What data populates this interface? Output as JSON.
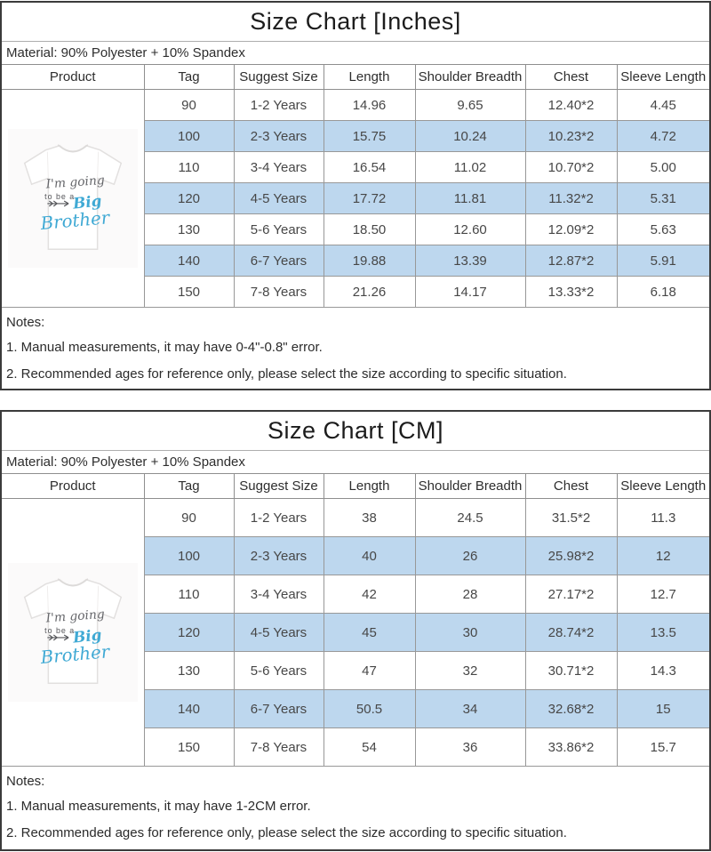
{
  "colors": {
    "row_highlight": "#bdd7ee",
    "outer_border": "#3b3b3b",
    "grid_border": "#989898",
    "shirt_blue": "#3fa9d4",
    "shirt_gray": "#65666a"
  },
  "shirt": {
    "line1": "I'm going",
    "line2": "to be a",
    "line3": "Big",
    "line4": "Brother"
  },
  "charts": [
    {
      "title": "Size Chart [Inches]",
      "material": "Material: 90% Polyester + 10% Spandex",
      "columns": [
        "Product",
        "Tag",
        "Suggest Size",
        "Length",
        "Shoulder Breadth",
        "Chest",
        "Sleeve Length"
      ],
      "rows": [
        {
          "tag": "90",
          "suggest": "1-2 Years",
          "length": "14.96",
          "shoulder": "9.65",
          "chest": "12.40*2",
          "sleeve": "4.45",
          "highlight": false
        },
        {
          "tag": "100",
          "suggest": "2-3 Years",
          "length": "15.75",
          "shoulder": "10.24",
          "chest": "10.23*2",
          "sleeve": "4.72",
          "highlight": true
        },
        {
          "tag": "110",
          "suggest": "3-4 Years",
          "length": "16.54",
          "shoulder": "11.02",
          "chest": "10.70*2",
          "sleeve": "5.00",
          "highlight": false
        },
        {
          "tag": "120",
          "suggest": "4-5 Years",
          "length": "17.72",
          "shoulder": "11.81",
          "chest": "11.32*2",
          "sleeve": "5.31",
          "highlight": true
        },
        {
          "tag": "130",
          "suggest": "5-6 Years",
          "length": "18.50",
          "shoulder": "12.60",
          "chest": "12.09*2",
          "sleeve": "5.63",
          "highlight": false
        },
        {
          "tag": "140",
          "suggest": "6-7 Years",
          "length": "19.88",
          "shoulder": "13.39",
          "chest": "12.87*2",
          "sleeve": "5.91",
          "highlight": true
        },
        {
          "tag": "150",
          "suggest": "7-8 Years",
          "length": "21.26",
          "shoulder": "14.17",
          "chest": "13.33*2",
          "sleeve": "6.18",
          "highlight": false
        }
      ],
      "notes_label": "Notes:",
      "notes": [
        "1. Manual measurements, it may have 0-4\"-0.8\" error.",
        "2. Recommended ages for reference only, please select the size according to specific situation."
      ]
    },
    {
      "title": "Size Chart [CM]",
      "material": "Material: 90% Polyester + 10% Spandex",
      "columns": [
        "Product",
        "Tag",
        "Suggest Size",
        "Length",
        "Shoulder Breadth",
        "Chest",
        "Sleeve Length"
      ],
      "rows": [
        {
          "tag": "90",
          "suggest": "1-2 Years",
          "length": "38",
          "shoulder": "24.5",
          "chest": "31.5*2",
          "sleeve": "11.3",
          "highlight": false
        },
        {
          "tag": "100",
          "suggest": "2-3 Years",
          "length": "40",
          "shoulder": "26",
          "chest": "25.98*2",
          "sleeve": "12",
          "highlight": true
        },
        {
          "tag": "110",
          "suggest": "3-4 Years",
          "length": "42",
          "shoulder": "28",
          "chest": "27.17*2",
          "sleeve": "12.7",
          "highlight": false
        },
        {
          "tag": "120",
          "suggest": "4-5 Years",
          "length": "45",
          "shoulder": "30",
          "chest": "28.74*2",
          "sleeve": "13.5",
          "highlight": true
        },
        {
          "tag": "130",
          "suggest": "5-6 Years",
          "length": "47",
          "shoulder": "32",
          "chest": "30.71*2",
          "sleeve": "14.3",
          "highlight": false
        },
        {
          "tag": "140",
          "suggest": "6-7 Years",
          "length": "50.5",
          "shoulder": "34",
          "chest": "32.68*2",
          "sleeve": "15",
          "highlight": true
        },
        {
          "tag": "150",
          "suggest": "7-8 Years",
          "length": "54",
          "shoulder": "36",
          "chest": "33.86*2",
          "sleeve": "15.7",
          "highlight": false
        }
      ],
      "notes_label": "Notes:",
      "notes": [
        "1. Manual measurements, it may have 1-2CM error.",
        "2. Recommended ages for reference only, please select the size according to specific situation."
      ]
    }
  ]
}
